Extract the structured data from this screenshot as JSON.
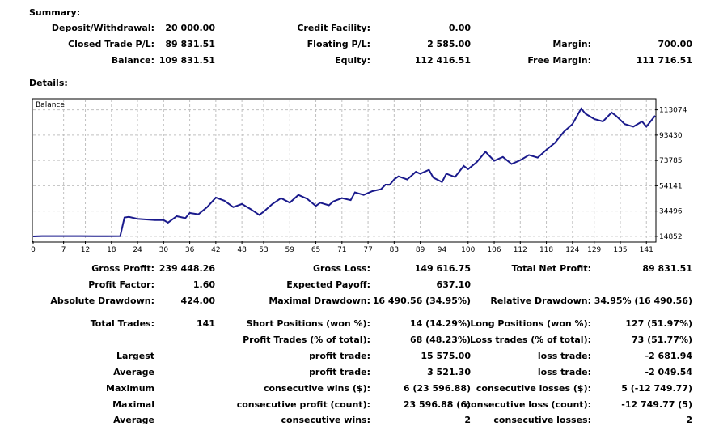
{
  "summary": {
    "heading": "Summary:",
    "deposit_label": "Deposit/Withdrawal:",
    "deposit_value": "20 000.00",
    "credit_label": "Credit Facility:",
    "credit_value": "0.00",
    "closed_label": "Closed Trade P/L:",
    "closed_value": "89 831.51",
    "floating_label": "Floating P/L:",
    "floating_value": "2 585.00",
    "margin_label": "Margin:",
    "margin_value": "700.00",
    "balance_label": "Balance:",
    "balance_value": "109 831.51",
    "equity_label": "Equity:",
    "equity_value": "112 416.51",
    "free_margin_label": "Free Margin:",
    "free_margin_value": "111 716.51"
  },
  "details": {
    "heading": "Details:"
  },
  "chart_data": {
    "type": "line",
    "legend": "Balance",
    "xlim": [
      0,
      143
    ],
    "ylim": [
      11000,
      121000
    ],
    "x_ticks": [
      "0",
      "7",
      "12",
      "18",
      "24",
      "30",
      "36",
      "42",
      "48",
      "53",
      "59",
      "65",
      "71",
      "77",
      "83",
      "89",
      "94",
      "100",
      "106",
      "112",
      "118",
      "124",
      "129",
      "135",
      "141"
    ],
    "y_ticks": [
      "113074",
      "93430",
      "73785",
      "54141",
      "34496",
      "14852"
    ],
    "series": [
      {
        "x": [
          0,
          2,
          5,
          8,
          11,
          14,
          17,
          20,
          21,
          22,
          24,
          26,
          28,
          30,
          31,
          33,
          35,
          36,
          38,
          40,
          42,
          44,
          46,
          48,
          50,
          52,
          53,
          55,
          57,
          59,
          61,
          63,
          65,
          66,
          68,
          69,
          71,
          73,
          74,
          76,
          78,
          80,
          81,
          82,
          83,
          84,
          86,
          88,
          89,
          91,
          92,
          94,
          95,
          97,
          99,
          100,
          102,
          104,
          106,
          108,
          110,
          112,
          114,
          116,
          118,
          120,
          122,
          124,
          126,
          127,
          129,
          131,
          133,
          134,
          136,
          138,
          140,
          141,
          143
        ],
        "y": [
          14800,
          15000,
          15000,
          15000,
          15000,
          14900,
          14900,
          15000,
          29500,
          30000,
          28500,
          28000,
          27500,
          27500,
          25500,
          30500,
          29000,
          33000,
          32000,
          37500,
          45000,
          42500,
          37500,
          40000,
          36000,
          31500,
          34000,
          40000,
          44500,
          41000,
          47000,
          44000,
          38500,
          41000,
          39000,
          42000,
          44500,
          43000,
          49000,
          47000,
          50000,
          51500,
          55000,
          55000,
          59000,
          61500,
          59000,
          65000,
          63500,
          66500,
          60500,
          57000,
          63500,
          61000,
          69500,
          67000,
          72500,
          80500,
          73500,
          76500,
          71000,
          74000,
          78000,
          76000,
          82000,
          87500,
          96000,
          102000,
          114000,
          110000,
          106000,
          104000,
          111000,
          108500,
          102000,
          100000,
          104000,
          100000,
          108500
        ]
      }
    ]
  },
  "stats": {
    "gross_profit_label": "Gross Profit:",
    "gross_profit_value": "239 448.26",
    "gross_loss_label": "Gross Loss:",
    "gross_loss_value": "149 616.75",
    "total_net_label": "Total Net Profit:",
    "total_net_value": "89 831.51",
    "profit_factor_label": "Profit Factor:",
    "profit_factor_value": "1.60",
    "expected_payoff_label": "Expected Payoff:",
    "expected_payoff_value": "637.10",
    "abs_dd_label": "Absolute Drawdown:",
    "abs_dd_value": "424.00",
    "max_dd_label": "Maximal Drawdown:",
    "max_dd_value": "16 490.56 (34.95%)",
    "rel_dd_label": "Relative Drawdown:",
    "rel_dd_value": "34.95% (16 490.56)",
    "total_trades_label": "Total Trades:",
    "total_trades_value": "141",
    "short_label": "Short Positions (won %):",
    "short_value": "14 (14.29%)",
    "long_label": "Long Positions (won %):",
    "long_value": "127 (51.97%)",
    "profit_trades_label": "Profit Trades (% of total):",
    "profit_trades_value": "68 (48.23%)",
    "loss_trades_label": "Loss trades (% of total):",
    "loss_trades_value": "73 (51.77%)",
    "largest_label": "Largest",
    "largest_profit_label": "profit trade:",
    "largest_profit_value": "15 575.00",
    "largest_loss_label": "loss trade:",
    "largest_loss_value": "-2 681.94",
    "average_label": "Average",
    "average_profit_label": "profit trade:",
    "average_profit_value": "3 521.30",
    "average_loss_label": "loss trade:",
    "average_loss_value": "-2 049.54",
    "maximum_label": "Maximum",
    "max_cons_wins_label": "consecutive wins ($):",
    "max_cons_wins_value": "6 (23 596.88)",
    "max_cons_losses_label": "consecutive losses ($):",
    "max_cons_losses_value": "5 (-12 749.77)",
    "maximal_label": "Maximal",
    "maximal_cons_profit_label": "consecutive profit (count):",
    "maximal_cons_profit_value": "23 596.88 (6)",
    "maximal_cons_loss_label": "consecutive loss (count):",
    "maximal_cons_loss_value": "-12 749.77 (5)",
    "avg2_label": "Average",
    "avg_cons_wins_label": "consecutive wins:",
    "avg_cons_wins_value": "2",
    "avg_cons_losses_label": "consecutive losses:",
    "avg_cons_losses_value": "2"
  }
}
